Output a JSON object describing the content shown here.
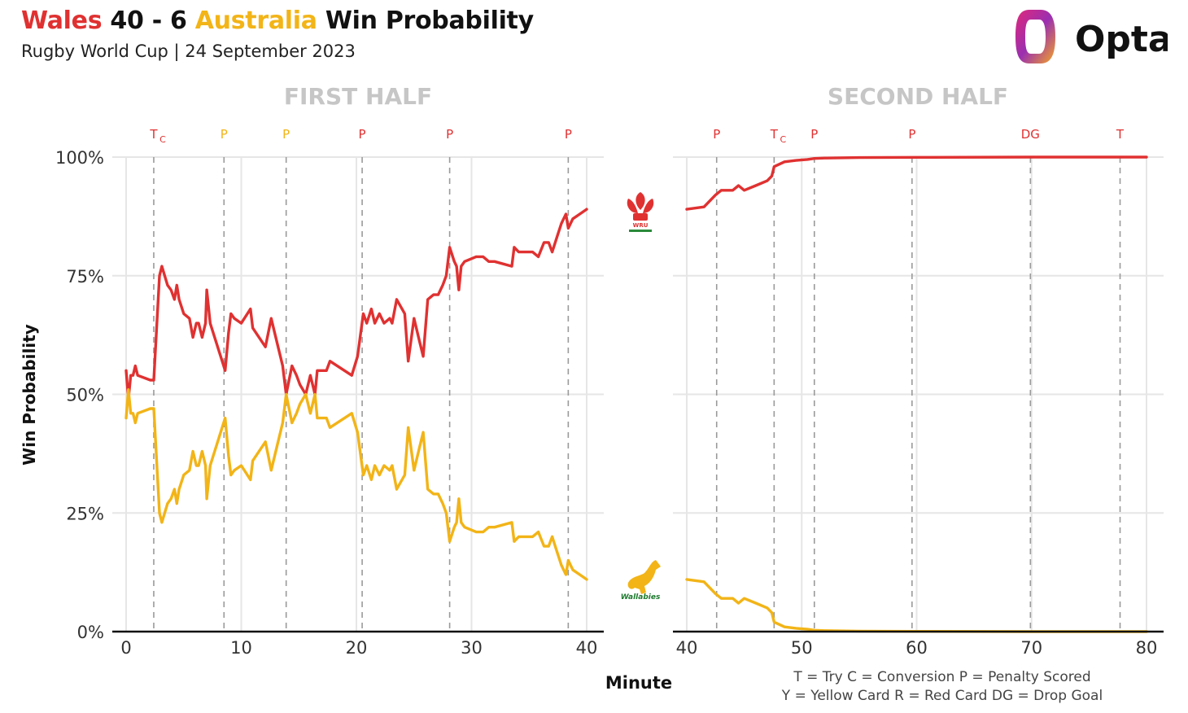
{
  "title": {
    "team1": "Wales",
    "score": "40 - 6",
    "team2": "Australia",
    "suffix": "Win Probability"
  },
  "subtitle": "Rugby World Cup | 24 September 2023",
  "brand": "Opta",
  "colors": {
    "wales": "#e03131",
    "australia": "#f2b417",
    "grid": "#e6e6e6",
    "event_line": "#9a9a9a"
  },
  "crest_labels": {
    "wales": "WRU",
    "australia": "Wallabies"
  },
  "legend": {
    "line1": "T = Try     C = Conversion     P = Penalty Scored",
    "line2": "Y = Yellow Card     R = Red Card     DG = Drop Goal"
  },
  "chart_data": [
    {
      "type": "line",
      "title": "FIRST HALF",
      "xlabel": "Minute",
      "ylabel": "Win Probability",
      "xlim": [
        0,
        40
      ],
      "ylim": [
        0,
        100
      ],
      "x_ticks": [
        0,
        10,
        20,
        30,
        40
      ],
      "y_ticks": [
        0,
        25,
        50,
        75,
        100
      ],
      "y_tick_labels": [
        "0%",
        "25%",
        "50%",
        "75%",
        "100%"
      ],
      "events": [
        {
          "minute": 2.4,
          "label": "T",
          "sub": "C",
          "team": "wales"
        },
        {
          "minute": 8.5,
          "label": "P",
          "team": "australia"
        },
        {
          "minute": 13.9,
          "label": "P",
          "team": "australia"
        },
        {
          "minute": 20.5,
          "label": "P",
          "team": "wales"
        },
        {
          "minute": 28.1,
          "label": "P",
          "team": "wales"
        },
        {
          "minute": 38.4,
          "label": "P",
          "team": "wales"
        }
      ],
      "series": [
        {
          "name": "Wales",
          "color": "#e03131",
          "x": [
            0,
            0.2,
            0.4,
            0.6,
            0.8,
            1.0,
            2.1,
            2.4,
            2.9,
            3.1,
            3.6,
            3.9,
            4.2,
            4.4,
            4.6,
            5.0,
            5.5,
            5.8,
            6.1,
            6.3,
            6.6,
            6.9,
            7.0,
            7.3,
            8.6,
            8.9,
            9.1,
            9.4,
            10.0,
            10.8,
            11.0,
            12.1,
            12.6,
            12.9,
            13.6,
            13.9,
            14.4,
            14.8,
            15.1,
            15.6,
            16.0,
            16.4,
            16.6,
            17.0,
            17.4,
            17.7,
            19.6,
            20.1,
            20.6,
            20.9,
            21.3,
            21.6,
            22.0,
            22.4,
            22.9,
            23.1,
            23.5,
            24.2,
            24.5,
            25.0,
            25.5,
            25.8,
            26.2,
            26.7,
            27.1,
            27.5,
            27.8,
            28.1,
            28.5,
            28.7,
            28.9,
            29.1,
            29.4,
            30.4,
            31.0,
            31.5,
            32.0,
            33.5,
            33.7,
            34.1,
            35.3,
            35.8,
            36.3,
            36.7,
            37.0,
            37.4,
            37.8,
            38.2,
            38.4,
            38.8,
            39.4,
            40.0
          ],
          "values": [
            55,
            49,
            54,
            54,
            56,
            54,
            53,
            53,
            75,
            77,
            73,
            72,
            70,
            73,
            70,
            67,
            66,
            62,
            65,
            65,
            62,
            65,
            72,
            65,
            55,
            63,
            67,
            66,
            65,
            68,
            64,
            60,
            66,
            63,
            56,
            50,
            56,
            54,
            52,
            50,
            54,
            50,
            55,
            55,
            55,
            57,
            54,
            58,
            67,
            65,
            68,
            65,
            67,
            65,
            66,
            65,
            70,
            67,
            57,
            66,
            61,
            58,
            70,
            71,
            71,
            73,
            75,
            81,
            78,
            77,
            72,
            77,
            78,
            79,
            79,
            78,
            78,
            77,
            81,
            80,
            80,
            79,
            82,
            82,
            80,
            83,
            86,
            88,
            85,
            87,
            88,
            89
          ]
        },
        {
          "name": "Australia",
          "color": "#f2b417",
          "x": [
            0,
            0.2,
            0.4,
            0.6,
            0.8,
            1.0,
            2.1,
            2.4,
            2.9,
            3.1,
            3.6,
            3.9,
            4.2,
            4.4,
            4.6,
            5.0,
            5.5,
            5.8,
            6.1,
            6.3,
            6.6,
            6.9,
            7.0,
            7.3,
            8.6,
            8.9,
            9.1,
            9.4,
            10.0,
            10.8,
            11.0,
            12.1,
            12.6,
            12.9,
            13.6,
            13.9,
            14.4,
            14.8,
            15.1,
            15.6,
            16.0,
            16.4,
            16.6,
            17.0,
            17.4,
            17.7,
            19.6,
            20.1,
            20.6,
            20.9,
            21.3,
            21.6,
            22.0,
            22.4,
            22.9,
            23.1,
            23.5,
            24.2,
            24.5,
            25.0,
            25.5,
            25.8,
            26.2,
            26.7,
            27.1,
            27.5,
            27.8,
            28.1,
            28.5,
            28.7,
            28.9,
            29.1,
            29.4,
            30.4,
            31.0,
            31.5,
            32.0,
            33.5,
            33.7,
            34.1,
            35.3,
            35.8,
            36.3,
            36.7,
            37.0,
            37.4,
            37.8,
            38.2,
            38.4,
            38.8,
            39.4,
            40.0
          ],
          "values": [
            45,
            51,
            46,
            46,
            44,
            46,
            47,
            47,
            25,
            23,
            27,
            28,
            30,
            27,
            30,
            33,
            34,
            38,
            35,
            35,
            38,
            35,
            28,
            35,
            45,
            37,
            33,
            34,
            35,
            32,
            36,
            40,
            34,
            37,
            44,
            50,
            44,
            46,
            48,
            50,
            46,
            50,
            45,
            45,
            45,
            43,
            46,
            42,
            33,
            35,
            32,
            35,
            33,
            35,
            34,
            35,
            30,
            33,
            43,
            34,
            39,
            42,
            30,
            29,
            29,
            27,
            25,
            19,
            22,
            23,
            28,
            23,
            22,
            21,
            21,
            22,
            22,
            23,
            19,
            20,
            20,
            21,
            18,
            18,
            20,
            17,
            14,
            12,
            15,
            13,
            12,
            11
          ]
        }
      ]
    },
    {
      "type": "line",
      "title": "SECOND HALF",
      "xlabel": "Minute",
      "ylabel": "Win Probability",
      "xlim": [
        40,
        80
      ],
      "ylim": [
        0,
        100
      ],
      "x_ticks": [
        40,
        50,
        60,
        70,
        80
      ],
      "y_ticks": [
        0,
        25,
        50,
        75,
        100
      ],
      "events": [
        {
          "minute": 42.6,
          "label": "P",
          "team": "wales"
        },
        {
          "minute": 47.6,
          "label": "T",
          "sub": "C",
          "team": "wales"
        },
        {
          "minute": 51.1,
          "label": "P",
          "team": "wales"
        },
        {
          "minute": 59.6,
          "label": "P",
          "team": "wales"
        },
        {
          "minute": 69.9,
          "label": "DG",
          "team": "wales"
        },
        {
          "minute": 77.7,
          "label": "T",
          "team": "wales"
        }
      ],
      "series": [
        {
          "name": "Wales",
          "color": "#e03131",
          "x": [
            40,
            41.5,
            42.5,
            43,
            44,
            44.5,
            45,
            46,
            47,
            47.4,
            47.6,
            48.5,
            49.5,
            50.5,
            51.1,
            52,
            55,
            60,
            70,
            80
          ],
          "values": [
            89,
            89.5,
            92,
            93,
            93,
            94,
            93,
            94,
            95,
            96,
            98,
            99,
            99.3,
            99.5,
            99.7,
            99.8,
            99.9,
            99.95,
            100,
            100
          ]
        },
        {
          "name": "Australia",
          "color": "#f2b417",
          "x": [
            40,
            41.5,
            42.5,
            43,
            44,
            44.5,
            45,
            46,
            47,
            47.4,
            47.6,
            48.5,
            49.5,
            50.5,
            51.1,
            52,
            55,
            60,
            70,
            80
          ],
          "values": [
            11,
            10.5,
            8,
            7,
            7,
            6,
            7,
            6,
            5,
            4,
            2,
            1,
            0.7,
            0.5,
            0.3,
            0.2,
            0.1,
            0.05,
            0,
            0
          ]
        }
      ]
    }
  ]
}
